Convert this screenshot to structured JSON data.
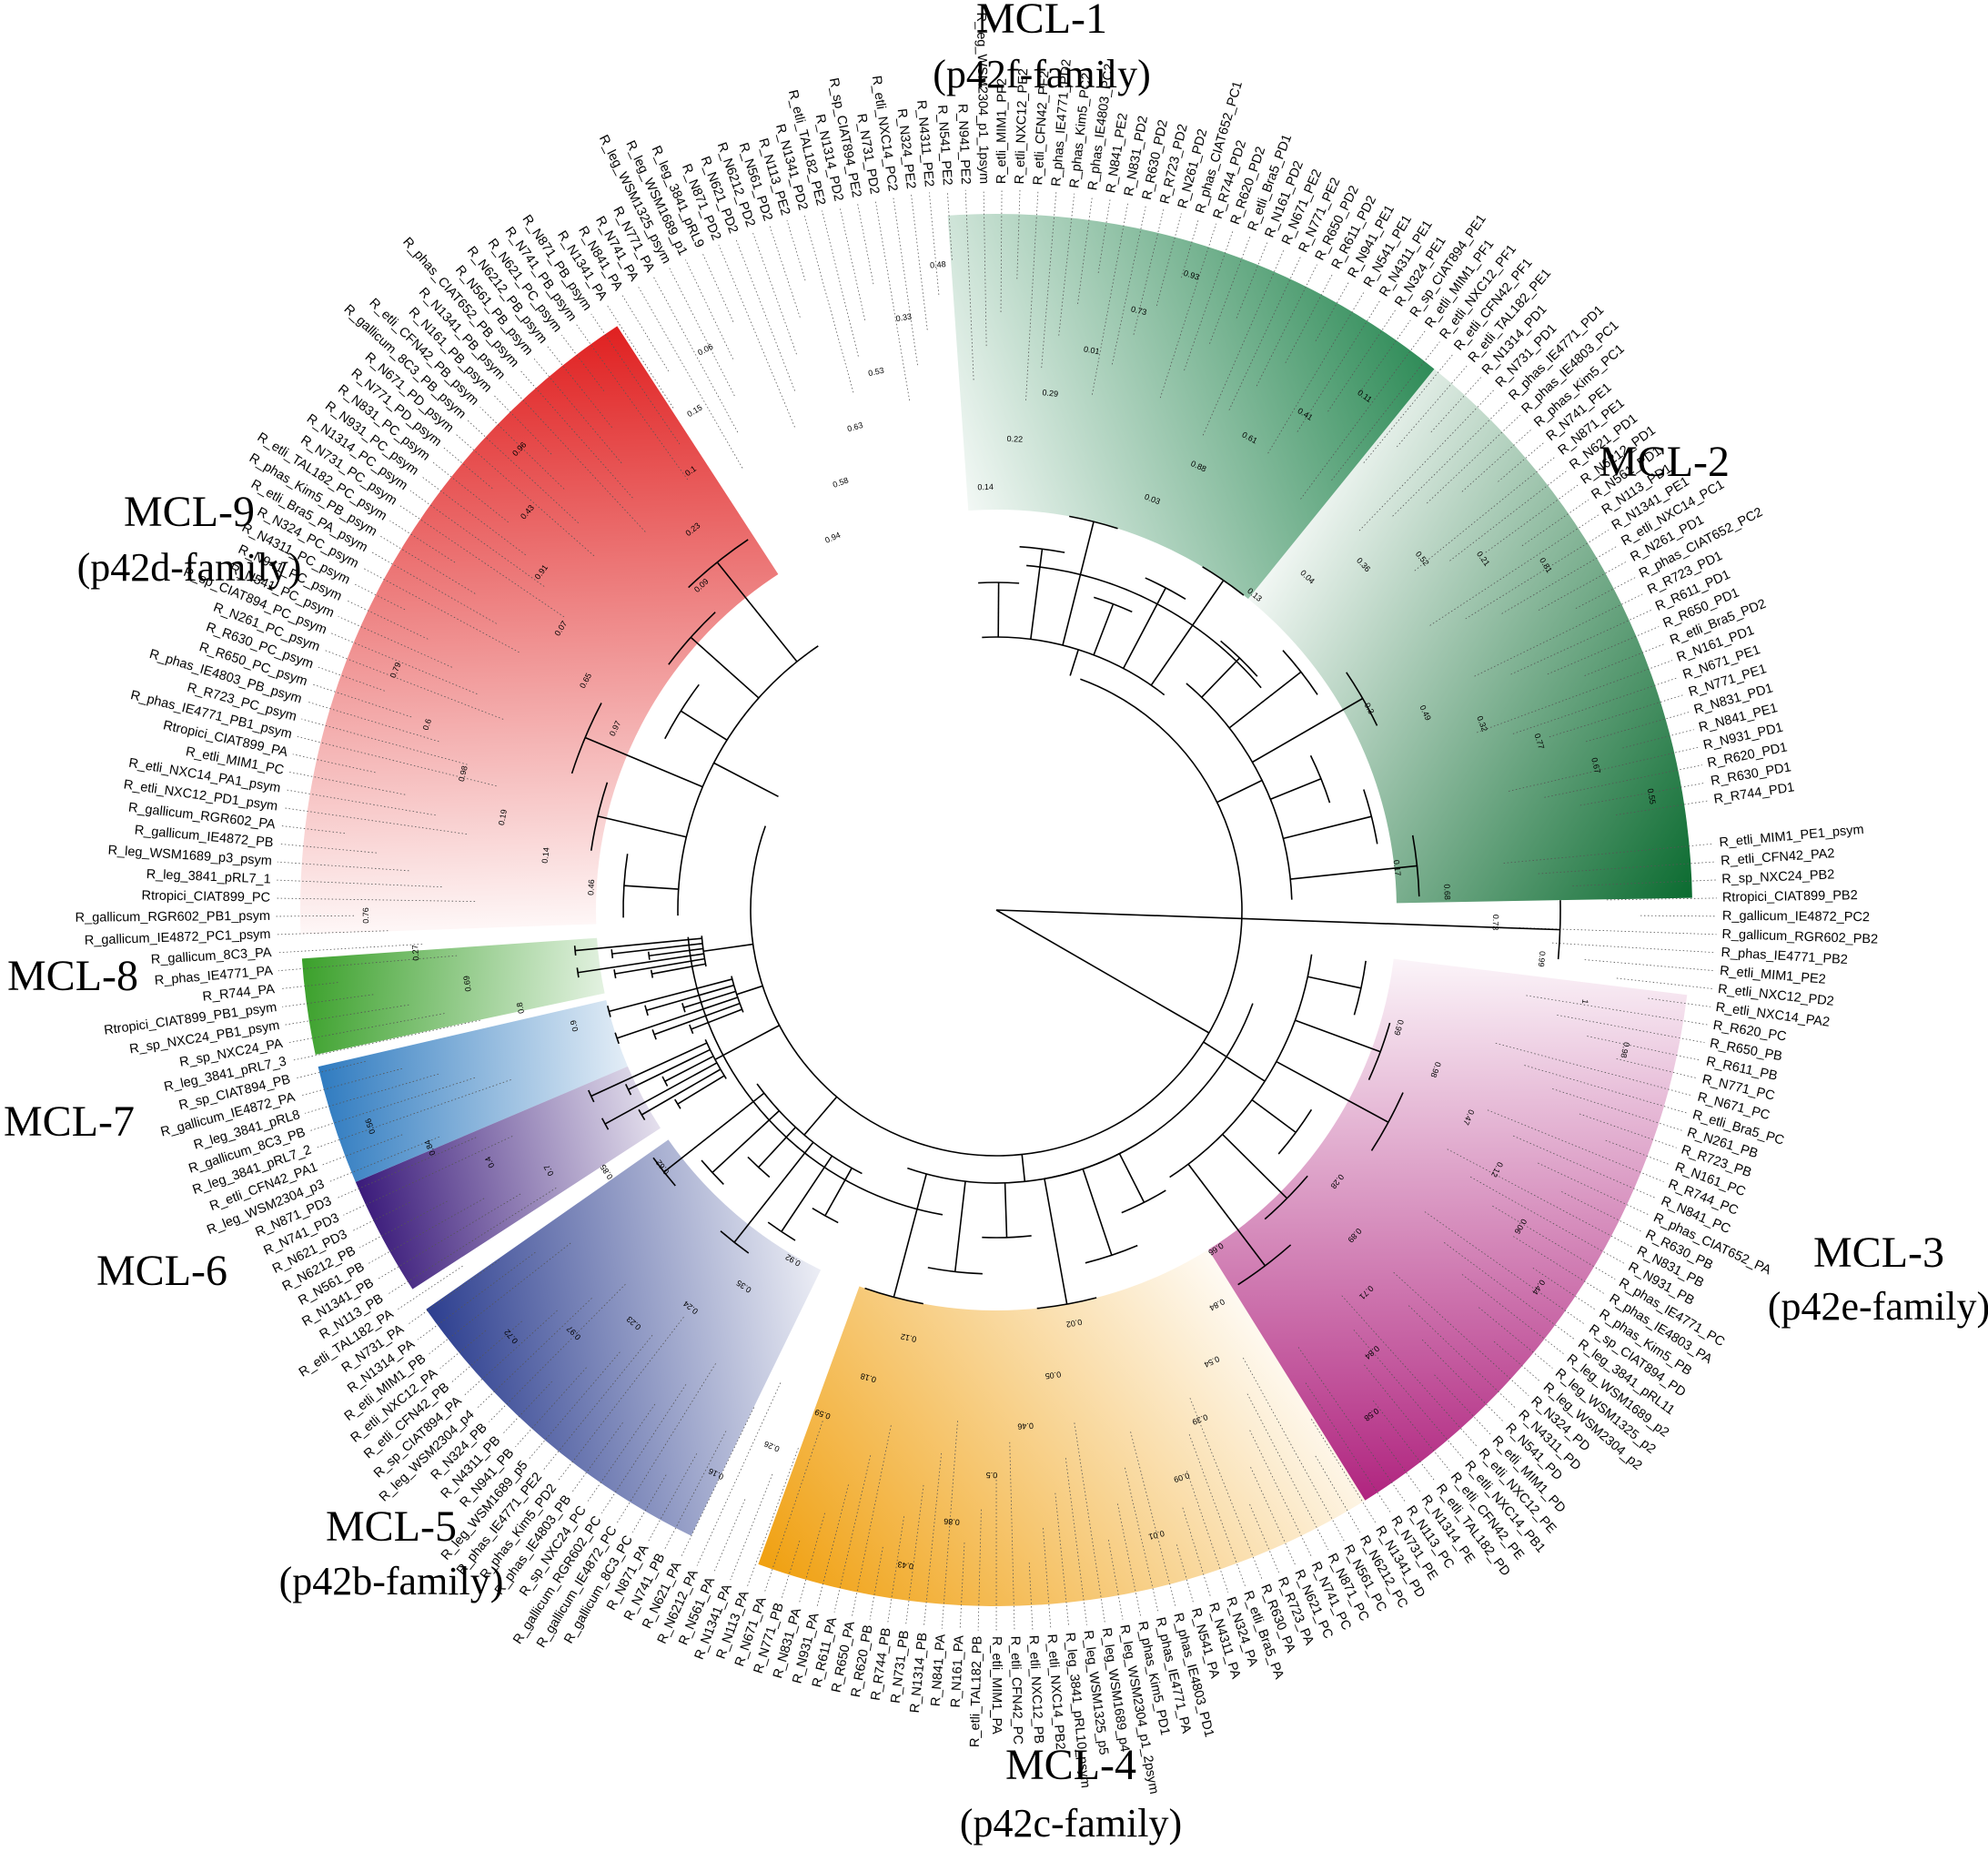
{
  "figure": {
    "clades": [
      {
        "id": "MCL-1",
        "family": "(p42f-family)",
        "color": "#2e8b57",
        "start": -94,
        "end": -51
      },
      {
        "id": "MCL-2",
        "family": "",
        "color": "#0b6b30",
        "start": -51,
        "end": -1
      },
      {
        "id": "MCL-3",
        "family": "(p42e-family)",
        "color": "#b0247f",
        "start": 7,
        "end": 58
      },
      {
        "id": "MCL-4",
        "family": "(p42c-family)",
        "color": "#f0a010",
        "start": 58,
        "end": 110
      },
      {
        "id": "MCL-5",
        "family": "(p42b-family)",
        "color": "#2c3e8f",
        "start": 116,
        "end": 145
      },
      {
        "id": "MCL-6",
        "family": "",
        "color": "#3a1a7a",
        "start": 147,
        "end": 157
      },
      {
        "id": "MCL-7",
        "family": "",
        "color": "#2f7bc0",
        "start": 157,
        "end": 167
      },
      {
        "id": "MCL-8",
        "family": "",
        "color": "#3aa02a",
        "start": 168,
        "end": 176
      },
      {
        "id": "MCL-9",
        "family": "(p42d-family)",
        "color": "#e02020",
        "start": 178,
        "end": 237
      }
    ],
    "leaves": [
      "R_etli_MIM1_PE1_psym",
      "R_etli_CFN42_PA2",
      "R_sp_NXC24_PB2",
      "Rtropici_CIAT899_PB2",
      "R_gallicum_IE4872_PC2",
      "R_gallicum_RGR602_PB2",
      "R_phas_IE4771_PB2",
      "R_etli_MIM1_PE2",
      "R_etli_NXC12_PD2",
      "R_etli_NXC14_PA2",
      "R_R620_PC",
      "R_R650_PB",
      "R_R611_PB",
      "R_N771_PC",
      "R_N671_PC",
      "R_etli_Bra5_PC",
      "R_N261_PB",
      "R_R723_PB",
      "R_N161_PC",
      "R_R744_PC",
      "R_N841_PC",
      "R_phas_CIAT652_PA",
      "R_R630_PB",
      "R_N831_PB",
      "R_N931_PB",
      "R_phas_IE4771_PC",
      "R_phas_IE4803_PA",
      "R_phas_Kim5_PB",
      "R_sp_CIAT894_PD",
      "R_leg_3841_pRL11",
      "R_leg_WSM1689_p2",
      "R_leg_WSM1325_p2",
      "R_leg_WSM2304_p2",
      "R_N324_PD",
      "R_N4311_PD",
      "R_N541_PD",
      "R_etli_MIM1_PD",
      "R_etli_NXC12_PE",
      "R_etli_NXC14_PB1",
      "R_etli_CFN42_PE",
      "R_etli_TAL182_PD",
      "R_N1314_PE",
      "R_N113_PC",
      "R_N731_PE",
      "R_N1341_PD",
      "R_N6212_PC",
      "R_N561_PC",
      "R_N871_PC",
      "R_N741_PC",
      "R_N621_PC",
      "R_R723_PA",
      "R_R630_PA",
      "R_etli_Bra5_PA",
      "R_N324_PA",
      "R_N4311_PA",
      "R_N541_PA",
      "R_phas_IE4803_PD1",
      "R_phas_IE4771_PA",
      "R_phas_Kim5_PD1",
      "R_leg_WSM2304_p1_2psym",
      "R_leg_WSM1689_p4",
      "R_leg_WSM1325_p5",
      "R_leg_3841_pRL10_psym",
      "R_etli_NXC14_PB2",
      "R_etli_NXC12_PB",
      "R_etli_CFN42_PC",
      "R_etli_MIM1_PA",
      "R_etli_TAL182_PB",
      "R_N161_PA",
      "R_N841_PA",
      "R_N1314_PB",
      "R_N731_PB",
      "R_R744_PB",
      "R_R620_PB",
      "R_R650_PA",
      "R_R611_PA",
      "R_N931_PA",
      "R_N831_PA",
      "R_N771_PB",
      "R_N671_PA",
      "R_N113_PA",
      "R_N1341_PA",
      "R_N561_PA",
      "R_N6212_PA",
      "R_N621_PA",
      "R_N741_PB",
      "R_N871_PA",
      "R_gallicum_8C3_PC",
      "R_gallicum_IE4872_PC",
      "R_gallicum_RGR602_PC",
      "R_sp_NXC24_PC",
      "R_phas_IE4803_PB",
      "R_phas_Kim5_PD2",
      "R_phas_IE4771_PE2",
      "R_leg_WSM1689_p5",
      "R_N941_PB",
      "R_N4311_PB",
      "R_N324_PB",
      "R_leg_WSM2304_p4",
      "R_sp_CIAT894_PA",
      "R_etli_CFN42_PB",
      "R_etli_NXC12_PA",
      "R_etli_MIM1_PB",
      "R_N1314_PA",
      "R_N731_PA",
      "R_etli_TAL182_PA",
      "R_N113_PB",
      "R_N1341_PB",
      "R_N561_PB",
      "R_N6212_PB",
      "R_N621_PD3",
      "R_N741_PD3",
      "R_N871_PD3",
      "R_leg_WSM2304_p3",
      "R_etli_CFN42_PA1",
      "R_leg_3841_pRL7_2",
      "R_gallicum_8C3_PB",
      "R_leg_3841_pRL8",
      "R_gallicum_IE4872_PA",
      "R_sp_CIAT894_PB",
      "R_leg_3841_pRL7_3",
      "R_sp_NXC24_PA",
      "R_sp_NXC24_PB1_psym",
      "Rtropici_CIAT899_PB1_psym",
      "R_R744_PA",
      "R_phas_IE4771_PA",
      "R_gallicum_8C3_PA",
      "R_gallicum_IE4872_PC1_psym",
      "R_gallicum_RGR602_PB1_psym",
      "Rtropici_CIAT899_PC",
      "R_leg_3841_pRL7_1",
      "R_leg_WSM1689_p3_psym",
      "R_gallicum_IE4872_PB",
      "R_gallicum_RGR602_PA",
      "R_etli_NXC12_PD1_psym",
      "R_etli_NXC14_PA1_psym",
      "R_etli_MIM1_PC",
      "Rtropici_CIAT899_PA",
      "R_phas_IE4771_PB1_psym",
      "R_R723_PC_psym",
      "R_phas_IE4803_PB_psym",
      "R_R650_PC_psym",
      "R_R630_PC_psym",
      "R_N261_PC_psym",
      "R_sp_CIAT894_PC_psym",
      "R_N541_PC_psym",
      "R_N941_PC_psym",
      "R_N4311_PC_psym",
      "R_N324_PC_psym",
      "R_etli_Bra5_PA_psym",
      "R_phas_Kim5_PB_psym",
      "R_etli_TAL182_PC_psym",
      "R_N731_PC_psym",
      "R_N1314_PC_psym",
      "R_N931_PC_psym",
      "R_N831_PC_psym",
      "R_N771_PD_psym",
      "R_N671_PD_psym",
      "R_gallicum_8C3_PB_psym",
      "R_etli_CFN42_PB_psym",
      "R_N161_PB_psym",
      "R_N1341_PB_psym",
      "R_phas_CIAT652_PB_psym",
      "R_N561_PB_psym",
      "R_N6212_PB_psym",
      "R_N621_PC_psym",
      "R_N741_PB_psym",
      "R_N871_PB_psym",
      "R_N1341_PA",
      "R_N841_PA",
      "R_N741_PA",
      "R_N771_PA",
      "R_leg_WSM1325_psym",
      "R_leg_WSM1689_p1",
      "R_leg_3841_pRL9",
      "R_N871_PD2",
      "R_N621_PD2",
      "R_N6212_PD2",
      "R_N561_PD2",
      "R_N113_PE2",
      "R_N1341_PD2",
      "R_etli_TAL182_PE2",
      "R_N1314_PD2",
      "R_sp_CIAT894_PE2",
      "R_N731_PD2",
      "R_etli_NXC14_PC2",
      "R_N324_PE2",
      "R_N4311_PE2",
      "R_N541_PE2",
      "R_N941_PE2",
      "R_leg_WSM2304_p1_1psym",
      "R_etli_MIM1_PF2",
      "R_etli_NXC12_PE2",
      "R_etli_CFN42_PF2",
      "R_phas_IE4771_PD2",
      "R_phas_Kim5_PC2",
      "R_phas_IE4803_PC2",
      "R_N841_PE2",
      "R_N831_PD2",
      "R_R630_PD2",
      "R_R723_PD2",
      "R_N261_PD2",
      "R_phas_CIAT652_PC1",
      "R_R744_PD2",
      "R_R620_PD2",
      "R_etli_Bra5_PD1",
      "R_N161_PD2",
      "R_N671_PE2",
      "R_N771_PE2",
      "R_R650_PD2",
      "R_R611_PD2",
      "R_N941_PE1",
      "R_N541_PE1",
      "R_N4311_PE1",
      "R_N324_PE1",
      "R_sp_CIAT894_PE1",
      "R_etli_MIM1_PF1",
      "R_etli_NXC12_PF1",
      "R_etli_CFN42_PF1",
      "R_etli_TAL182_PE1",
      "R_N1314_PD1",
      "R_N731_PD1",
      "R_phas_IE4771_PD1",
      "R_phas_IE4803_PC1",
      "R_phas_Kim5_PC1",
      "R_N741_PE1",
      "R_N871_PE1",
      "R_N621_PD1",
      "R_N6212_PD1",
      "R_N561_PD1",
      "R_N113_PD1",
      "R_N1341_PE1",
      "R_etli_NXC14_PC1",
      "R_N261_PD1",
      "R_phas_CIAT652_PC2",
      "R_R723_PD1",
      "R_R611_PD1",
      "R_R650_PD1",
      "R_etli_Bra5_PD2",
      "R_N161_PD1",
      "R_N671_PE1",
      "R_N771_PE1",
      "R_N831_PD1",
      "R_N841_PE1",
      "R_N931_PD1",
      "R_R620_PD1",
      "R_R630_PD1",
      "R_R744_PD1"
    ],
    "boot": [
      "0.17",
      "0.68",
      "0.73",
      "0.99",
      "1",
      "0.98",
      "0.99",
      "0.98",
      "0.47",
      "0.12",
      "0.06",
      "0.44",
      "0.28",
      "0.89",
      "0.71",
      "0.84",
      "0.58",
      "0.66",
      "0.84",
      "0.54",
      "0.39",
      "0.09",
      "0.01",
      "0.02",
      "0.05",
      "0.46",
      "0.5",
      "0.86",
      "0.43",
      "0.12",
      "0.18",
      "0.59",
      "0.26",
      "0.16",
      "0.92",
      "0.35",
      "0.24",
      "0.23",
      "0.97",
      "0.72",
      "0.62",
      "0.85",
      "0.7",
      "0.4",
      "0.84",
      "0.56",
      "0.9",
      "0.8",
      "0.69",
      "0.27",
      "0.76",
      "0.46",
      "0.14",
      "0.19",
      "0.98",
      "0.6",
      "0.79",
      "0.97",
      "0.65",
      "0.07",
      "0.91",
      "0.43",
      "0.96",
      "0.09",
      "0.23",
      "0.1",
      "0.15",
      "0.06",
      "0.94",
      "0.58",
      "0.63",
      "0.53",
      "0.33",
      "0.48",
      "0.14",
      "0.22",
      "0.29",
      "0.01",
      "0.73",
      "0.93",
      "0.03",
      "0.88",
      "0.61",
      "0.41",
      "0.11",
      "0.13",
      "0.04",
      "0.36",
      "0.52",
      "0.21",
      "0.81",
      "0.3",
      "0.49",
      "0.32",
      "0.77",
      "0.67",
      "0.55"
    ]
  }
}
